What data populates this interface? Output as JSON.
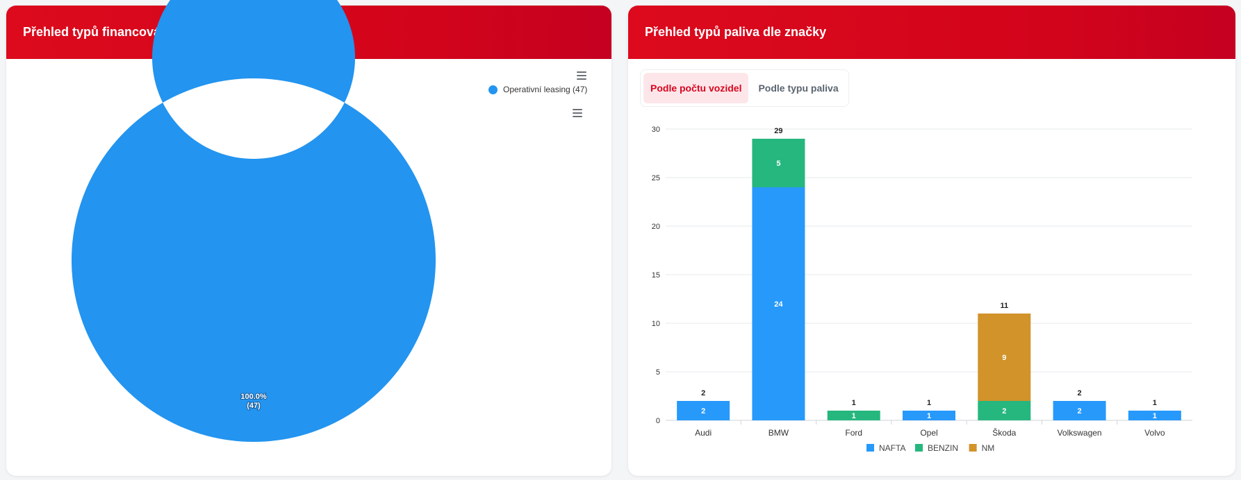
{
  "left_panel": {
    "title": "Přehled typů financování",
    "legend": {
      "label": "Operativní leasing (47)",
      "color": "#2394ef"
    },
    "slice_label_pct": "100.0%",
    "slice_label_count": "(47)"
  },
  "right_panel": {
    "title": "Přehled typů paliva dle značky",
    "tabs": [
      {
        "label": "Podle počtu vozidel",
        "active": true
      },
      {
        "label": "Podle typu paliva",
        "active": false
      }
    ]
  },
  "chart_data": [
    {
      "type": "pie",
      "donut": true,
      "categories": [
        "Operativní leasing"
      ],
      "values": [
        47
      ],
      "percentages": [
        100.0
      ],
      "colors": [
        "#2394ef"
      ],
      "legend_position": "top-right"
    },
    {
      "type": "bar",
      "stacked": true,
      "categories": [
        "Audi",
        "BMW",
        "Ford",
        "Opel",
        "Škoda",
        "Volkswagen",
        "Volvo"
      ],
      "series": [
        {
          "name": "NAFTA",
          "color": "#2799fb",
          "values": [
            2,
            24,
            0,
            1,
            0,
            2,
            1
          ]
        },
        {
          "name": "BENZIN",
          "color": "#26b77e",
          "values": [
            0,
            5,
            1,
            0,
            2,
            0,
            0
          ]
        },
        {
          "name": "NM",
          "color": "#d1932a",
          "values": [
            0,
            0,
            0,
            0,
            9,
            0,
            0
          ]
        }
      ],
      "totals": [
        2,
        29,
        1,
        1,
        11,
        2,
        1
      ],
      "ylim": [
        0,
        30
      ],
      "yticks": [
        0,
        5,
        10,
        15,
        20,
        25,
        30
      ],
      "grid": true,
      "legend_position": "bottom"
    }
  ]
}
